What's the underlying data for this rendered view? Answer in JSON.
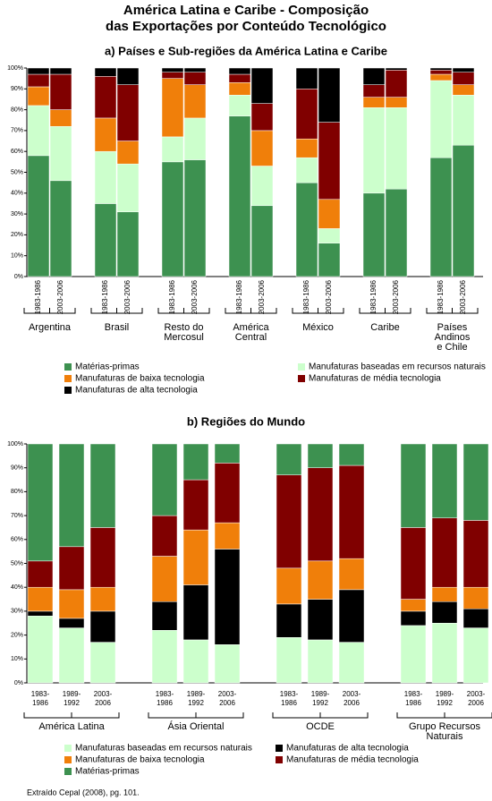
{
  "title": [
    "América Latina e Caribe - Composição",
    "das Exportações por Conteúdo Tecnológico"
  ],
  "source": "Extraído Cepal (2008), pg. 101.",
  "chart_data": [
    {
      "type": "stacked_bar",
      "title": "a) Países e Sub-regiões da América Latina e Caribe",
      "groups": [
        {
          "name": [
            "Argentina"
          ],
          "categories": [
            "1983-1986",
            "2003-2006"
          ]
        },
        {
          "name": [
            "Brasil"
          ],
          "categories": [
            "1983-1986",
            "2003-2006"
          ]
        },
        {
          "name": [
            "Resto do",
            "Mercosul"
          ],
          "categories": [
            "1983-1986",
            "2003-2006"
          ]
        },
        {
          "name": [
            "América",
            "Central"
          ],
          "categories": [
            "1983-1986",
            "2003-2006"
          ]
        },
        {
          "name": [
            "México"
          ],
          "categories": [
            "1983-1986",
            "2003-2006"
          ]
        },
        {
          "name": [
            "Caribe"
          ],
          "categories": [
            "1983-1986",
            "2003-2006"
          ]
        },
        {
          "name": [
            "Países",
            "Andinos",
            "e Chile"
          ],
          "categories": [
            "1983-1986",
            "2003-2006"
          ]
        }
      ],
      "series": [
        {
          "name": "Matérias-primas",
          "color": "#3d9150",
          "values": [
            58,
            46,
            35,
            31,
            55,
            56,
            77,
            34,
            45,
            16,
            40,
            42,
            57,
            63
          ]
        },
        {
          "name": "Manufaturas baseadas em recursos naturais",
          "color": "#ccffcc",
          "values": [
            24,
            26,
            25,
            23,
            12,
            20,
            10,
            19,
            12,
            7,
            41,
            39,
            37,
            24
          ]
        },
        {
          "name": "Manufaturas de baixa tecnologia",
          "color": "#f07f0a",
          "values": [
            9,
            8,
            16,
            11,
            28,
            16,
            6,
            17,
            9,
            14,
            5,
            5,
            3,
            5
          ]
        },
        {
          "name": "Manufaturas de média tecnologia",
          "color": "#800000",
          "values": [
            6,
            17,
            20,
            27,
            3,
            6,
            4,
            13,
            24,
            37,
            6,
            13,
            2,
            6
          ]
        },
        {
          "name": "Manufaturas de alta tecnologia",
          "color": "#000000",
          "values": [
            3,
            3,
            4,
            8,
            2,
            2,
            3,
            17,
            10,
            26,
            8,
            1,
            1,
            2
          ]
        }
      ],
      "ylim": [
        0,
        100
      ],
      "yticks": [
        {
          "value": 0,
          "label": "0%"
        },
        {
          "value": 10,
          "label": "10%"
        },
        {
          "value": 20,
          "label": "20%"
        },
        {
          "value": 30,
          "label": "30%"
        },
        {
          "value": 40,
          "label": "40%"
        },
        {
          "value": 50,
          "label": "50%"
        },
        {
          "value": 60,
          "label": "60%"
        },
        {
          "value": 70,
          "label": "70%"
        },
        {
          "value": 80,
          "label": "80%"
        },
        {
          "value": 90,
          "label": "90%"
        },
        {
          "value": 100,
          "label": "100%"
        }
      ]
    },
    {
      "type": "stacked_bar",
      "title": "b) Regiões do Mundo",
      "groups": [
        {
          "name": [
            "América Latina"
          ],
          "categories": [
            "1983-1986",
            "1989-1992",
            "2003-2006"
          ]
        },
        {
          "name": [
            "Ásia Oriental"
          ],
          "categories": [
            "1983-1986",
            "1989-1992",
            "2003-2006"
          ]
        },
        {
          "name": [
            "OCDE"
          ],
          "categories": [
            "1983-1986",
            "1989-1992",
            "2003-2006"
          ]
        },
        {
          "name": [
            "Grupo Recursos",
            "Naturais"
          ],
          "categories": [
            "1983-1986",
            "1989-1992",
            "2003-2006"
          ]
        }
      ],
      "series": [
        {
          "name": "Manufaturas baseadas em recursos naturais",
          "color": "#ccffcc",
          "values": [
            28,
            23,
            17,
            22,
            18,
            16,
            19,
            18,
            17,
            24,
            25,
            23
          ]
        },
        {
          "name": "Manufaturas de alta tecnologia",
          "color": "#000000",
          "values": [
            2,
            4,
            13,
            12,
            23,
            40,
            14,
            17,
            22,
            6,
            9,
            8
          ]
        },
        {
          "name": "Manufaturas de baixa tecnologia",
          "color": "#f07f0a",
          "values": [
            10,
            12,
            10,
            19,
            23,
            11,
            15,
            16,
            13,
            5,
            6,
            9
          ]
        },
        {
          "name": "Manufaturas de média tecnologia",
          "color": "#800000",
          "values": [
            11,
            18,
            25,
            17,
            21,
            25,
            39,
            39,
            39,
            30,
            29,
            28
          ]
        },
        {
          "name": "Matérias-primas",
          "color": "#3d9150",
          "values": [
            49,
            43,
            35,
            30,
            15,
            8,
            13,
            10,
            9,
            35,
            31,
            32
          ]
        }
      ],
      "ylim": [
        0,
        100
      ],
      "yticks": [
        {
          "value": 0,
          "label": "0%"
        },
        {
          "value": 10,
          "label": "10%"
        },
        {
          "value": 20,
          "label": "20%"
        },
        {
          "value": 30,
          "label": "30%"
        },
        {
          "value": 40,
          "label": "40%"
        },
        {
          "value": 50,
          "label": "50%"
        },
        {
          "value": 60,
          "label": "60%"
        },
        {
          "value": 70,
          "label": "70%"
        },
        {
          "value": 80,
          "label": "80%"
        },
        {
          "value": 90,
          "label": "90%"
        },
        {
          "value": 100,
          "label": "100%"
        }
      ]
    }
  ]
}
